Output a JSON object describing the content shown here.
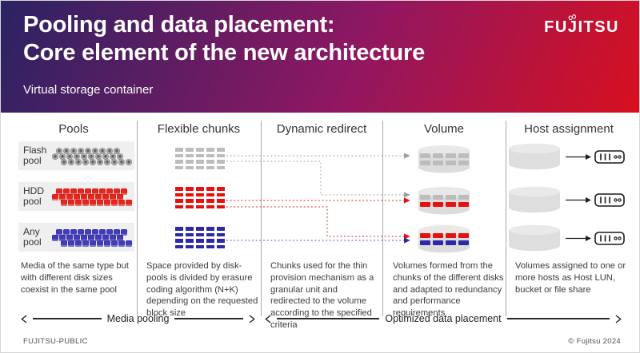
{
  "slide": {
    "title_line1": "Pooling and data placement:",
    "title_line2": "Core element of the new architecture",
    "subtitle": "Virtual storage container",
    "logo_text": "FUJITSU",
    "footer_left": "FUJITSU-PUBLIC",
    "footer_right": "© Fujitsu 2024"
  },
  "columns": [
    {
      "header": "Pools",
      "description": "Media of the same type but with different disk sizes coexist in the same pool"
    },
    {
      "header": "Flexible chunks",
      "description": "Space provided by disk-pools is divided by erasure coding algorithm (N+K) depending on the requested block size"
    },
    {
      "header": "Dynamic redirect",
      "description": "Chunks used for the thin provision mechanism as a granular unit and redirected to the volume according to the specified criteria"
    },
    {
      "header": "Volume",
      "description": "Volumes formed from the chunks of the different disks and adapted to redundancy and performance requirements"
    },
    {
      "header": "Host assignment",
      "description": "Volumes assigned to one or more hosts as Host LUN, bucket or file share"
    }
  ],
  "pools": [
    {
      "label": "Flash pool",
      "type": "flash"
    },
    {
      "label": "HDD pool",
      "type": "hdd"
    },
    {
      "label": "Any pool",
      "type": "any"
    }
  ],
  "volumes": [
    {
      "chunk_rows": [
        [
          "flash",
          "flash",
          "flash",
          "flash"
        ],
        [
          "flash",
          "flash",
          "flash",
          "flash"
        ]
      ]
    },
    {
      "chunk_rows": [
        [
          "flash",
          "flash",
          "flash",
          "flash"
        ],
        [
          "hdd",
          "hdd",
          "hdd",
          "hdd"
        ]
      ]
    },
    {
      "chunk_rows": [
        [
          "hdd",
          "hdd",
          "hdd",
          "hdd"
        ],
        [
          "any",
          "any",
          "any",
          "any"
        ]
      ]
    }
  ],
  "bottom_arrows": [
    {
      "label": "Media pooling"
    },
    {
      "label": "Optimized data placement"
    }
  ],
  "colors": {
    "flash": "#9e9e9e",
    "hdd": "#e8251d",
    "any": "#423cb8",
    "flash_chunk": "#bcbcbc",
    "hdd_chunk": "#e6100f",
    "any_chunk": "#2d28a8",
    "line_flash": "#b7b7b7",
    "line_hdd": "#e2564f",
    "line_any": "#7b79cf",
    "header_gradient": [
      "#2a2363",
      "#8f1762",
      "#d8101f"
    ]
  }
}
